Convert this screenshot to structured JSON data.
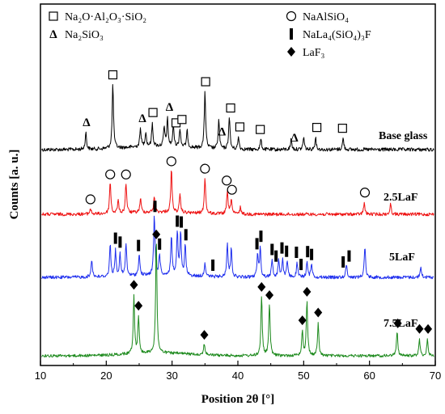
{
  "chart_data": {
    "type": "line",
    "title": "",
    "xlabel": "Position 2θ [°]",
    "ylabel": "Counts [a. u.]",
    "xlim": [
      10,
      70
    ],
    "xticks": [
      10,
      20,
      30,
      40,
      50,
      60,
      70
    ],
    "yticks_shown": false,
    "legend": [
      {
        "symbol": "square",
        "text": "Na₂O·Al₂O₃·SiO₂"
      },
      {
        "symbol": "delta",
        "text": "Na₂SiO₃"
      },
      {
        "symbol": "circle",
        "text": "NaAlSiO₄"
      },
      {
        "symbol": "bar",
        "text": "NaLa₄(SiO₄)₃F"
      },
      {
        "symbol": "diamond",
        "text": "LaF₃"
      }
    ],
    "series": [
      {
        "name": "Base glass",
        "color": "#000000",
        "baseline": 0.215,
        "peaks": [
          [
            16.9,
            0.16
          ],
          [
            21.0,
            0.62
          ],
          [
            25.2,
            0.18
          ],
          [
            26.0,
            0.14
          ],
          [
            27.0,
            0.22
          ],
          [
            28.8,
            0.18
          ],
          [
            29.3,
            0.26
          ],
          [
            30.2,
            0.2
          ],
          [
            31.2,
            0.18
          ],
          [
            32.3,
            0.16
          ],
          [
            35.0,
            0.56
          ],
          [
            37.1,
            0.28
          ],
          [
            38.7,
            0.32
          ],
          [
            40.1,
            0.12
          ],
          [
            43.5,
            0.1
          ],
          [
            48.1,
            0.1
          ],
          [
            50.0,
            0.12
          ],
          [
            51.8,
            0.12
          ],
          [
            56.0,
            0.11
          ]
        ],
        "markers": [
          {
            "symbol": "square",
            "x": 21.0
          },
          {
            "symbol": "square",
            "x": 27.1
          },
          {
            "symbol": "square",
            "x": 30.6
          },
          {
            "symbol": "square",
            "x": 31.5
          },
          {
            "symbol": "square",
            "x": 35.1
          },
          {
            "symbol": "square",
            "x": 38.9
          },
          {
            "symbol": "square",
            "x": 40.3
          },
          {
            "symbol": "square",
            "x": 43.4
          },
          {
            "symbol": "square",
            "x": 52.0
          },
          {
            "symbol": "square",
            "x": 55.9
          },
          {
            "symbol": "delta",
            "x": 17.0
          },
          {
            "symbol": "delta",
            "x": 25.5
          },
          {
            "symbol": "delta",
            "x": 29.6
          },
          {
            "symbol": "delta",
            "x": 37.6
          },
          {
            "symbol": "delta",
            "x": 48.6
          }
        ]
      },
      {
        "name": "2.5LaF",
        "color": "#ee1111",
        "baseline": 0.2,
        "peaks": [
          [
            17.6,
            0.08
          ],
          [
            20.6,
            0.45
          ],
          [
            21.8,
            0.18
          ],
          [
            23.0,
            0.42
          ],
          [
            25.2,
            0.2
          ],
          [
            27.3,
            0.22
          ],
          [
            29.9,
            0.6
          ],
          [
            31.2,
            0.24
          ],
          [
            35.0,
            0.52
          ],
          [
            38.4,
            0.32
          ],
          [
            39.0,
            0.22
          ],
          [
            40.4,
            0.1
          ],
          [
            59.2,
            0.16
          ],
          [
            63.2,
            0.14
          ]
        ],
        "markers": [
          {
            "symbol": "circle",
            "x": 17.6
          },
          {
            "symbol": "circle",
            "x": 20.6
          },
          {
            "symbol": "circle",
            "x": 23.0
          },
          {
            "symbol": "circle",
            "x": 29.9
          },
          {
            "symbol": "circle",
            "x": 35.0
          },
          {
            "symbol": "circle",
            "x": 38.3
          },
          {
            "symbol": "circle",
            "x": 39.1
          },
          {
            "symbol": "circle",
            "x": 59.3
          }
        ]
      },
      {
        "name": "5LaF",
        "color": "#1f2fee",
        "baseline": 0.2,
        "peaks": [
          [
            17.8,
            0.25
          ],
          [
            20.6,
            0.45
          ],
          [
            21.4,
            0.36
          ],
          [
            22.1,
            0.3
          ],
          [
            23.0,
            0.45
          ],
          [
            25.0,
            0.3
          ],
          [
            27.3,
            0.85
          ],
          [
            28.1,
            0.3
          ],
          [
            29.9,
            0.55
          ],
          [
            30.8,
            0.6
          ],
          [
            31.3,
            0.58
          ],
          [
            32.0,
            0.42
          ],
          [
            35.0,
            0.2
          ],
          [
            38.4,
            0.48
          ],
          [
            39.0,
            0.4
          ],
          [
            43.0,
            0.32
          ],
          [
            43.4,
            0.4
          ],
          [
            45.2,
            0.26
          ],
          [
            46.2,
            0.24
          ],
          [
            46.8,
            0.25
          ],
          [
            47.5,
            0.22
          ],
          [
            49.0,
            0.2
          ],
          [
            50.5,
            0.22
          ],
          [
            51.2,
            0.2
          ],
          [
            56.5,
            0.18
          ],
          [
            59.3,
            0.44
          ],
          [
            67.8,
            0.14
          ]
        ],
        "markers": [
          {
            "symbol": "bar",
            "x": 21.4
          },
          {
            "symbol": "bar",
            "x": 22.1
          },
          {
            "symbol": "bar",
            "x": 24.9
          },
          {
            "symbol": "bar",
            "x": 27.4
          },
          {
            "symbol": "bar",
            "x": 28.1
          },
          {
            "symbol": "bar",
            "x": 30.8
          },
          {
            "symbol": "bar",
            "x": 31.4
          },
          {
            "symbol": "bar",
            "x": 32.1
          },
          {
            "symbol": "bar",
            "x": 36.2
          },
          {
            "symbol": "bar",
            "x": 42.9
          },
          {
            "symbol": "bar",
            "x": 43.5
          },
          {
            "symbol": "bar",
            "x": 45.2
          },
          {
            "symbol": "bar",
            "x": 45.8
          },
          {
            "symbol": "bar",
            "x": 46.7
          },
          {
            "symbol": "bar",
            "x": 47.4
          },
          {
            "symbol": "bar",
            "x": 48.9
          },
          {
            "symbol": "bar",
            "x": 49.6
          },
          {
            "symbol": "bar",
            "x": 50.6
          },
          {
            "symbol": "bar",
            "x": 51.2
          },
          {
            "symbol": "bar",
            "x": 56.0
          },
          {
            "symbol": "bar",
            "x": 56.9
          }
        ]
      },
      {
        "name": "7.5LaF",
        "color": "#1d8a1d",
        "baseline": 0.16,
        "peaks": [
          [
            24.2,
            0.5
          ],
          [
            24.9,
            0.32
          ],
          [
            27.6,
            1.0
          ],
          [
            34.9,
            0.1
          ],
          [
            43.6,
            0.52
          ],
          [
            44.8,
            0.46
          ],
          [
            49.8,
            0.22
          ],
          [
            50.5,
            0.48
          ],
          [
            52.2,
            0.28
          ],
          [
            64.2,
            0.22
          ],
          [
            67.6,
            0.14
          ],
          [
            68.8,
            0.14
          ]
        ],
        "markers": [
          {
            "symbol": "diamond",
            "x": 24.2
          },
          {
            "symbol": "diamond",
            "x": 24.9
          },
          {
            "symbol": "diamond",
            "x": 27.6
          },
          {
            "symbol": "diamond",
            "x": 34.9
          },
          {
            "symbol": "diamond",
            "x": 43.6
          },
          {
            "symbol": "diamond",
            "x": 44.8
          },
          {
            "symbol": "diamond",
            "x": 49.8
          },
          {
            "symbol": "diamond",
            "x": 50.5
          },
          {
            "symbol": "diamond",
            "x": 52.2
          },
          {
            "symbol": "diamond",
            "x": 64.3
          },
          {
            "symbol": "diamond",
            "x": 67.6
          },
          {
            "symbol": "diamond",
            "x": 68.9
          }
        ]
      }
    ]
  }
}
